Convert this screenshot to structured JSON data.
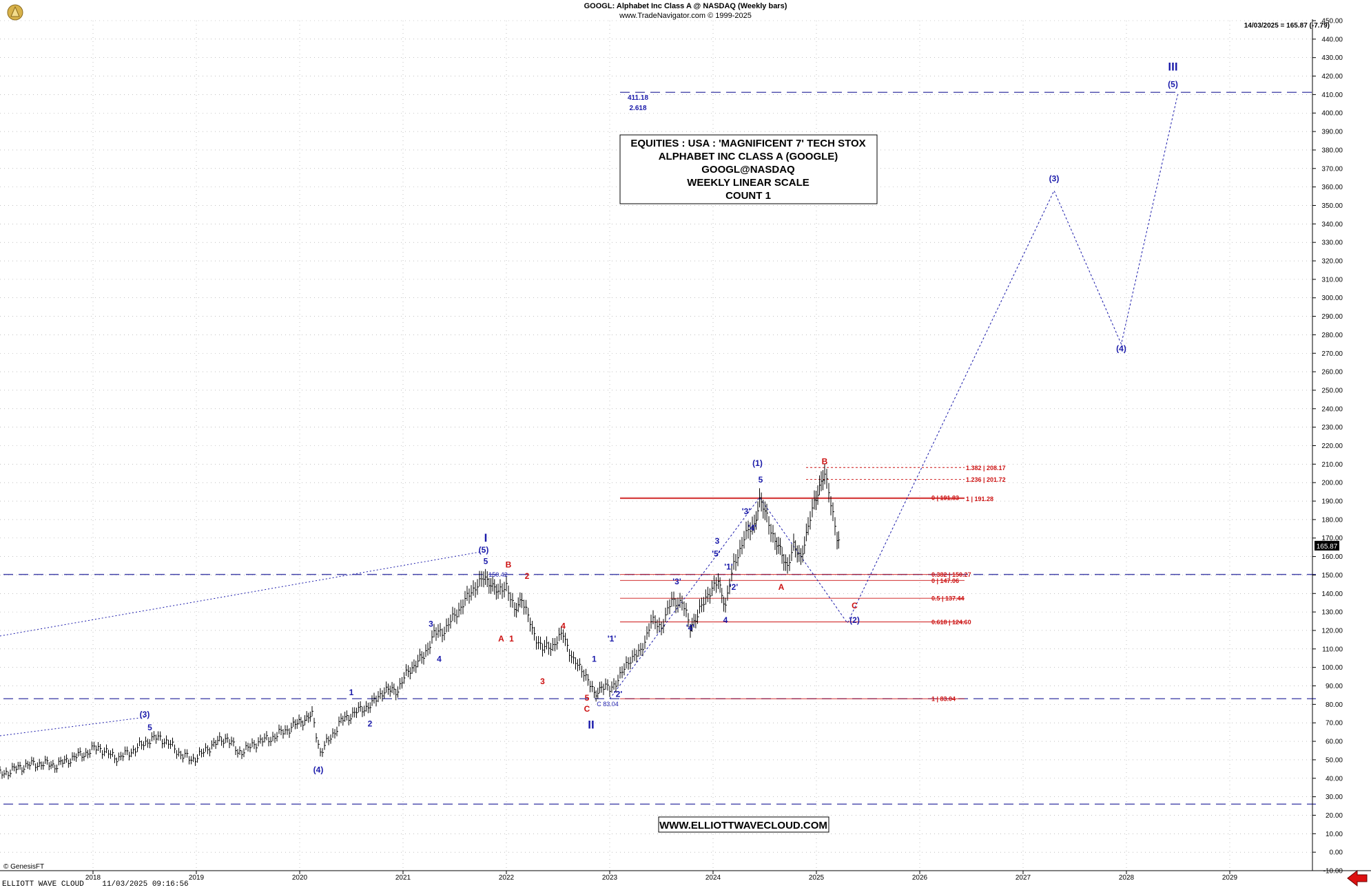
{
  "header": {
    "title": "GOOGL:  Alphabet Inc Class A @ NASDAQ  (Weekly bars)",
    "subtitle": "www.TradeNavigator.com © 1999-2025",
    "last_price_note": "14/03/2025 = 165.87 (-7.79)"
  },
  "footer": {
    "left_credit": "© GenesisFT",
    "status_line": "ELLIOTT WAVE CLOUD    11/03/2025 09:16:56"
  },
  "info_box": {
    "lines": [
      "EQUITIES : USA : 'MAGNIFICENT 7' TECH STOX",
      "ALPHABET INC CLASS A (GOOGLE)",
      "GOOGL@NASDAQ",
      "WEEKLY LINEAR SCALE",
      "COUNT 1"
    ],
    "website": "WWW.ELLIOTTWAVECLOUD.COM"
  },
  "colors": {
    "price_bars": "#000000",
    "wave_blue": "#1a1aaa",
    "wave_red": "#cc1111",
    "grid": "#9a9a9a",
    "hline_dash": "#4444aa",
    "fib_red": "#cc1111",
    "last_price_box": "#000000"
  },
  "chart_data": {
    "type": "line",
    "title": "GOOGL:  Alphabet Inc Class A @ NASDAQ  (Weekly bars)",
    "x_axis": {
      "labels": [
        "2018",
        "2019",
        "2020",
        "2021",
        "2022",
        "2023",
        "2024",
        "2025",
        "2026",
        "2027",
        "2028",
        "2029"
      ],
      "range": [
        2017.1,
        2029.8
      ]
    },
    "y_axis": {
      "min": -10,
      "max": 450,
      "step": 10,
      "position": "right"
    },
    "grid": true,
    "last_price": 165.87,
    "price_path": [
      [
        2017.1,
        42
      ],
      [
        2017.2,
        44
      ],
      [
        2017.35,
        47
      ],
      [
        2017.5,
        48
      ],
      [
        2017.65,
        47
      ],
      [
        2017.8,
        51
      ],
      [
        2017.95,
        54
      ],
      [
        2018.05,
        57
      ],
      [
        2018.15,
        53
      ],
      [
        2018.25,
        51
      ],
      [
        2018.35,
        54
      ],
      [
        2018.45,
        57
      ],
      [
        2018.55,
        61
      ],
      [
        2018.65,
        62
      ],
      [
        2018.75,
        58
      ],
      [
        2018.85,
        53
      ],
      [
        2018.95,
        50
      ],
      [
        2019.05,
        53
      ],
      [
        2019.15,
        58
      ],
      [
        2019.3,
        62
      ],
      [
        2019.4,
        54
      ],
      [
        2019.5,
        56
      ],
      [
        2019.6,
        60
      ],
      [
        2019.7,
        61
      ],
      [
        2019.8,
        64
      ],
      [
        2019.9,
        67
      ],
      [
        2020.05,
        72
      ],
      [
        2020.12,
        74
      ],
      [
        2020.2,
        54
      ],
      [
        2020.3,
        62
      ],
      [
        2020.4,
        71
      ],
      [
        2020.55,
        76
      ],
      [
        2020.7,
        80
      ],
      [
        2020.8,
        87
      ],
      [
        2020.95,
        88
      ],
      [
        2021.05,
        98
      ],
      [
        2021.2,
        106
      ],
      [
        2021.3,
        118
      ],
      [
        2021.4,
        120
      ],
      [
        2021.5,
        128
      ],
      [
        2021.6,
        136
      ],
      [
        2021.7,
        144
      ],
      [
        2021.78,
        148
      ],
      [
        2021.85,
        146
      ],
      [
        2021.92,
        140
      ],
      [
        2022.0,
        145
      ],
      [
        2022.08,
        130
      ],
      [
        2022.15,
        138
      ],
      [
        2022.25,
        120
      ],
      [
        2022.35,
        110
      ],
      [
        2022.45,
        112
      ],
      [
        2022.55,
        118
      ],
      [
        2022.65,
        103
      ],
      [
        2022.75,
        98
      ],
      [
        2022.85,
        85
      ],
      [
        2022.92,
        90
      ],
      [
        2023.0,
        88
      ],
      [
        2023.1,
        95
      ],
      [
        2023.2,
        105
      ],
      [
        2023.3,
        108
      ],
      [
        2023.4,
        125
      ],
      [
        2023.5,
        122
      ],
      [
        2023.6,
        136
      ],
      [
        2023.7,
        135
      ],
      [
        2023.78,
        122
      ],
      [
        2023.85,
        128
      ],
      [
        2023.95,
        140
      ],
      [
        2024.05,
        146
      ],
      [
        2024.12,
        134
      ],
      [
        2024.2,
        155
      ],
      [
        2024.3,
        170
      ],
      [
        2024.4,
        178
      ],
      [
        2024.45,
        190
      ],
      [
        2024.52,
        182
      ],
      [
        2024.6,
        168
      ],
      [
        2024.65,
        163
      ],
      [
        2024.72,
        155
      ],
      [
        2024.78,
        165
      ],
      [
        2024.85,
        160
      ],
      [
        2024.92,
        175
      ],
      [
        2024.98,
        190
      ],
      [
        2025.03,
        198
      ],
      [
        2025.08,
        204
      ],
      [
        2025.12,
        195
      ],
      [
        2025.16,
        184
      ],
      [
        2025.2,
        170
      ],
      [
        2025.23,
        165.87
      ]
    ],
    "wave_projection_major": [
      [
        2023.0,
        83
      ],
      [
        2024.45,
        192
      ],
      [
        2025.3,
        124
      ],
      [
        2027.3,
        358
      ],
      [
        2027.95,
        275
      ],
      [
        2028.5,
        411
      ]
    ],
    "fib_levels": [
      {
        "label": "1.382 | 208.17",
        "value": 208.17
      },
      {
        "label": "1.236 | 201.72",
        "value": 201.72
      },
      {
        "label": "1 | 191.28",
        "value": 191.28
      },
      {
        "label": "0 | 191.83",
        "value": 191.83
      },
      {
        "label": "0.382 | 150.27",
        "value": 150.27
      },
      {
        "label": "0 | 147.06",
        "value": 147.06
      },
      {
        "label": "0.5 | 137.44",
        "value": 137.44
      },
      {
        "label": "0.618 | 124.60",
        "value": 124.6
      },
      {
        "label": "1 | 83.04",
        "value": 83.04
      }
    ],
    "extension_target": {
      "value": "411.18",
      "ratio": "2.618",
      "level": 411.18
    },
    "horizontal_dashed_levels": [
      411.18,
      150.3,
      83.04,
      26
    ],
    "wave_labels": [
      {
        "text": "(3)",
        "x": 2018.5,
        "y": 73,
        "color": "blue"
      },
      {
        "text": "5",
        "x": 2018.55,
        "y": 66,
        "color": "blue"
      },
      {
        "text": "(4)",
        "x": 2020.18,
        "y": 43,
        "color": "blue"
      },
      {
        "text": "1",
        "x": 2020.5,
        "y": 85,
        "color": "blue"
      },
      {
        "text": "2",
        "x": 2020.68,
        "y": 68,
        "color": "blue"
      },
      {
        "text": "3",
        "x": 2021.27,
        "y": 122,
        "color": "blue"
      },
      {
        "text": "4",
        "x": 2021.35,
        "y": 103,
        "color": "blue"
      },
      {
        "text": "I",
        "x": 2021.8,
        "y": 168,
        "color": "blue"
      },
      {
        "text": "(5)",
        "x": 2021.78,
        "y": 162,
        "color": "blue"
      },
      {
        "text": "5",
        "x": 2021.8,
        "y": 156,
        "color": "blue"
      },
      {
        "text": "B",
        "x": 2022.02,
        "y": 154,
        "color": "red"
      },
      {
        "text": "2",
        "x": 2022.2,
        "y": 148,
        "color": "red"
      },
      {
        "text": "A",
        "x": 2021.95,
        "y": 114,
        "color": "red"
      },
      {
        "text": "1",
        "x": 2022.05,
        "y": 114,
        "color": "red"
      },
      {
        "text": "4",
        "x": 2022.55,
        "y": 121,
        "color": "red"
      },
      {
        "text": "3",
        "x": 2022.35,
        "y": 91,
        "color": "red"
      },
      {
        "text": "5",
        "x": 2022.78,
        "y": 82,
        "color": "red"
      },
      {
        "text": "C",
        "x": 2022.78,
        "y": 76,
        "color": "red"
      },
      {
        "text": "II",
        "x": 2022.82,
        "y": 67,
        "color": "blue"
      },
      {
        "text": "1",
        "x": 2022.85,
        "y": 103,
        "color": "blue"
      },
      {
        "text": "'1'",
        "x": 2023.02,
        "y": 114,
        "color": "blue"
      },
      {
        "text": "'2'",
        "x": 2023.08,
        "y": 84,
        "color": "blue"
      },
      {
        "text": "'3'",
        "x": 2023.65,
        "y": 145,
        "color": "blue"
      },
      {
        "text": "'4'",
        "x": 2023.78,
        "y": 120,
        "color": "blue"
      },
      {
        "text": "3",
        "x": 2024.04,
        "y": 167,
        "color": "blue"
      },
      {
        "text": "'5'",
        "x": 2024.03,
        "y": 160,
        "color": "blue"
      },
      {
        "text": "'1'",
        "x": 2024.15,
        "y": 153,
        "color": "blue"
      },
      {
        "text": "'2'",
        "x": 2024.2,
        "y": 142,
        "color": "blue"
      },
      {
        "text": "4",
        "x": 2024.12,
        "y": 124,
        "color": "blue"
      },
      {
        "text": "'3'",
        "x": 2024.32,
        "y": 183,
        "color": "blue"
      },
      {
        "text": "'4'",
        "x": 2024.38,
        "y": 174,
        "color": "blue"
      },
      {
        "text": "(1)",
        "x": 2024.43,
        "y": 209,
        "color": "blue"
      },
      {
        "text": "5",
        "x": 2024.46,
        "y": 200,
        "color": "blue"
      },
      {
        "text": "A",
        "x": 2024.66,
        "y": 142,
        "color": "red"
      },
      {
        "text": "B",
        "x": 2025.08,
        "y": 210,
        "color": "red"
      },
      {
        "text": "C",
        "x": 2025.37,
        "y": 132,
        "color": "red"
      },
      {
        "text": "(2)",
        "x": 2025.37,
        "y": 124,
        "color": "blue"
      },
      {
        "text": "(3)",
        "x": 2027.3,
        "y": 363,
        "color": "blue"
      },
      {
        "text": "(4)",
        "x": 2027.95,
        "y": 271,
        "color": "blue"
      },
      {
        "text": "III",
        "x": 2028.45,
        "y": 423,
        "color": "blue"
      },
      {
        "text": "(5)",
        "x": 2028.45,
        "y": 414,
        "color": "blue"
      }
    ],
    "small_annotations": [
      {
        "text": "150.42",
        "x": 2021.92,
        "y": 149
      },
      {
        "text": "C 83.04",
        "x": 2022.98,
        "y": 79
      }
    ]
  }
}
